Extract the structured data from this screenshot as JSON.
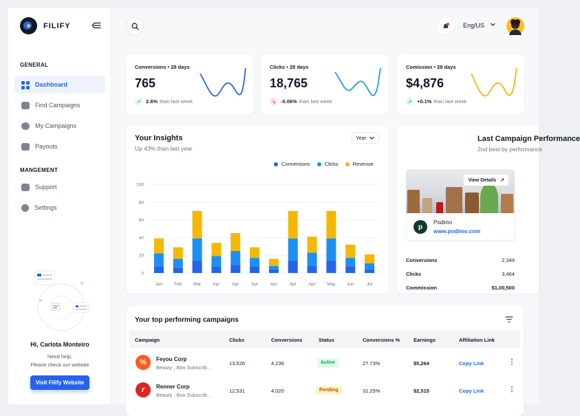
{
  "brand": {
    "name": "FILIFY"
  },
  "sidebar": {
    "general_label": "GENERAL",
    "items": [
      {
        "label": "Dashboard",
        "icon": "grid-icon"
      },
      {
        "label": "Find Campaigns",
        "icon": "search-campaign-icon"
      },
      {
        "label": "My Campaigns",
        "icon": "users-icon"
      },
      {
        "label": "Payouts",
        "icon": "wallet-icon"
      }
    ],
    "management_label": "MANGEMENT",
    "manage_items": [
      {
        "label": "Support",
        "icon": "chat-icon"
      },
      {
        "label": "Settings",
        "icon": "gear-icon"
      }
    ],
    "greeting": "Hi, Carlota Monteiro",
    "help_line1": "Need help,",
    "help_line2": "Please check our website",
    "visit_button": "Visit Filify Website"
  },
  "header": {
    "language": "Eng/US"
  },
  "stats": [
    {
      "title": "Conversions • 28 days",
      "value": "765",
      "change": "2.6%",
      "suffix": "than last week",
      "trend": "up",
      "line_color": "#2563eb"
    },
    {
      "title": "Clicks • 28 days",
      "value": "18,765",
      "change": "-0.06%",
      "suffix": "than last week",
      "trend": "down",
      "line_color": "#1d9bf0"
    },
    {
      "title": "Comission • 28 days",
      "value": "$4,876",
      "change": "+0.1%",
      "suffix": "than last week",
      "trend": "up",
      "line_color": "#f5b800"
    }
  ],
  "insights": {
    "title": "Your Insights",
    "subtitle": "Up 43% than last year",
    "period": "Year"
  },
  "chart_data": {
    "type": "bar",
    "stacked": true,
    "categories": [
      "Jan",
      "Feb",
      "Mar",
      "Apr",
      "Apr",
      "Apr",
      "Apr",
      "Apr",
      "Apr",
      "May",
      "Jun",
      "Jul"
    ],
    "series": [
      {
        "name": "Conversions",
        "color": "#2563eb",
        "values": [
          7,
          6,
          14,
          7,
          9,
          7,
          4,
          14,
          8,
          14,
          7,
          4
        ]
      },
      {
        "name": "Clicks",
        "color": "#1d8ff2",
        "values": [
          15,
          10,
          25,
          12,
          16,
          10,
          4,
          25,
          15,
          25,
          10,
          7
        ]
      },
      {
        "name": "Revenue",
        "color": "#f5b800",
        "values": [
          17,
          13,
          31,
          15,
          20,
          12,
          8,
          31,
          18,
          31,
          15,
          10
        ]
      }
    ],
    "ylim": [
      0,
      100
    ],
    "yticks": [
      0,
      20,
      40,
      60,
      80,
      100
    ],
    "grid": true,
    "legend": "top-right"
  },
  "last_campaign": {
    "title": "Last Campaign Performance",
    "subtitle": "2nd best by performance",
    "view_details": "View Details",
    "brand_name": "Podimo",
    "brand_url": "www.podimo.com",
    "metrics": [
      {
        "label": "Conversions",
        "value": "2,349"
      },
      {
        "label": "Clicks",
        "value": "3,464"
      },
      {
        "label": "Commission",
        "value": "$1,00,500"
      }
    ]
  },
  "table": {
    "title": "Your top performing campaigns",
    "columns": [
      "Campaign",
      "Clicks",
      "Conversions",
      "Status",
      "Conversions %",
      "Earnings",
      "Affiliation Link"
    ],
    "rows": [
      {
        "name": "Feyou Corp",
        "desc": "Beauty , Box Subscrib...",
        "clicks": "13,526",
        "conversions": "4,236",
        "status": "Active",
        "pct": "27.73%",
        "earnings": "$5,264",
        "link": "Copy Link",
        "logo_color": "#ff5a1f",
        "logo_glyph": "%"
      },
      {
        "name": "Renner Corp",
        "desc": "Beauty , Box Subscrib...",
        "clicks": "12,531",
        "conversions": "4,020",
        "status": "Pending",
        "pct": "31.25%",
        "earnings": "$2,515",
        "link": "Copy Link",
        "logo_color": "#e02424",
        "logo_glyph": "r"
      }
    ]
  }
}
